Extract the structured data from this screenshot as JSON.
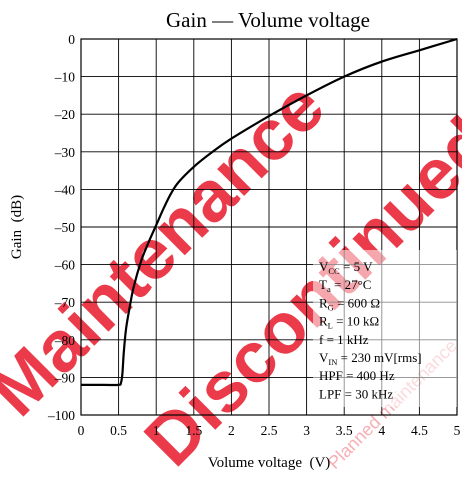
{
  "watermark": {
    "text_1": "Maintenance",
    "text_2": "Discontinued",
    "text_3": "Planned maintenance",
    "color": "#e8192c"
  },
  "chart_data": {
    "type": "line",
    "title": "Gain — Volume voltage",
    "xlabel": "Volume voltage  (V)",
    "ylabel": "Gain  (dB)",
    "xlim": [
      0,
      5
    ],
    "ylim": [
      -100,
      0
    ],
    "x_ticks": [
      "0",
      "0.5",
      "1",
      "1.5",
      "2",
      "2.5",
      "3",
      "3.5",
      "4",
      "4.5",
      "5"
    ],
    "y_ticks": [
      "0",
      "–10",
      "–20",
      "–30",
      "–40",
      "–50",
      "–60",
      "–70",
      "–80",
      "–90",
      "–100"
    ],
    "grid": true,
    "series": [
      {
        "x": [
          0.0,
          0.3,
          0.5,
          0.53,
          0.55,
          0.57,
          0.6,
          0.65,
          0.7,
          0.8,
          0.9,
          1.0,
          1.1,
          1.2,
          1.3,
          1.5,
          1.75,
          2.0,
          2.5,
          3.0,
          3.5,
          4.0,
          4.5,
          5.0
        ],
        "y": [
          -92,
          -92,
          -92,
          -91.5,
          -89,
          -83,
          -77,
          -71,
          -66,
          -59,
          -54,
          -49.5,
          -45,
          -41,
          -38,
          -34,
          -30,
          -26.5,
          -20.5,
          -15,
          -10,
          -6,
          -3,
          0
        ]
      }
    ],
    "conditions": [
      {
        "main": "V",
        "sub": "CC",
        "rest": " = 5 V"
      },
      {
        "main": "T",
        "sub": "a",
        "rest": " = 27°C"
      },
      {
        "main": "R",
        "sub": "G",
        "rest": " = 600 Ω"
      },
      {
        "main": "R",
        "sub": "L",
        "rest": " = 10 kΩ"
      },
      {
        "main": "f = 1 kHz",
        "sub": "",
        "rest": ""
      },
      {
        "main": "V",
        "sub": "IN",
        "rest": " = 230 mV[rms]"
      },
      {
        "main": "HPF = 400 Hz",
        "sub": "",
        "rest": ""
      },
      {
        "main": "LPF = 30 kHz",
        "sub": "",
        "rest": ""
      }
    ]
  }
}
